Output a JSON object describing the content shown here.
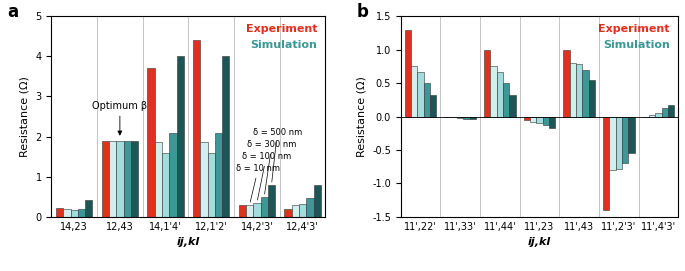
{
  "chart_data": [
    {
      "type": "bar",
      "title": "a",
      "x_label": "ij,kl",
      "y_label": "Resistance (Ω)",
      "categories": [
        "14,23",
        "12,43",
        "14,1'4'",
        "12,1'2'",
        "14,2'3'",
        "12,4'3'"
      ],
      "series": [
        {
          "name": "Experiment",
          "color": "#e0301e",
          "values": [
            0.22,
            1.9,
            3.7,
            4.4,
            0.3,
            0.2
          ]
        },
        {
          "name": "δ = 10 nm",
          "color": "#d2eeee",
          "values": [
            0.2,
            1.9,
            1.87,
            1.87,
            0.3,
            0.3
          ]
        },
        {
          "name": "δ = 100 nm",
          "color": "#a3dcdc",
          "values": [
            0.18,
            1.9,
            1.6,
            1.6,
            0.35,
            0.33
          ]
        },
        {
          "name": "δ = 300 nm",
          "color": "#3c9896",
          "values": [
            0.2,
            1.9,
            2.08,
            2.08,
            0.5,
            0.48
          ]
        },
        {
          "name": "δ = 500 nm",
          "color": "#1c5656",
          "values": [
            0.42,
            1.88,
            4.0,
            4.0,
            0.8,
            0.8
          ]
        }
      ],
      "ylim": [
        0,
        5
      ],
      "yticks": [
        0,
        1,
        2,
        3,
        4,
        5
      ],
      "annotations": [
        "Experiment",
        "Simulation",
        "Optimum β"
      ]
    },
    {
      "type": "bar",
      "title": "b",
      "x_label": "ij,kl",
      "y_label": "Resistance (Ω)",
      "categories": [
        "11',22'",
        "11',33'",
        "11',44'",
        "11',23",
        "11',43",
        "11',2'3'",
        "11',4'3'"
      ],
      "series": [
        {
          "color": "#e0301e",
          "values": [
            1.3,
            0.0,
            1.0,
            -0.05,
            1.0,
            -1.4,
            0.0
          ]
        },
        {
          "color": "#d2eeee",
          "values": [
            0.75,
            -0.01,
            0.75,
            -0.08,
            0.8,
            -0.8,
            0.02
          ]
        },
        {
          "color": "#a3dcdc",
          "values": [
            0.67,
            -0.02,
            0.67,
            -0.1,
            0.79,
            -0.78,
            0.06
          ]
        },
        {
          "color": "#3c9896",
          "values": [
            0.5,
            -0.03,
            0.5,
            -0.13,
            0.7,
            -0.7,
            0.13
          ]
        },
        {
          "color": "#1c5656",
          "values": [
            0.32,
            -0.03,
            0.32,
            -0.17,
            0.54,
            -0.54,
            0.17
          ]
        }
      ],
      "ylim": [
        -1.5,
        1.5
      ],
      "yticks": [
        -1.5,
        {
          "value": -1,
          "label": "-1.0"
        },
        -0.5,
        {
          "value": 0,
          "label": "0.0"
        },
        0.5,
        {
          "value": 1,
          "label": "1.0"
        },
        1.5
      ],
      "annotations": [
        "Experiment",
        "Simulation"
      ]
    }
  ]
}
